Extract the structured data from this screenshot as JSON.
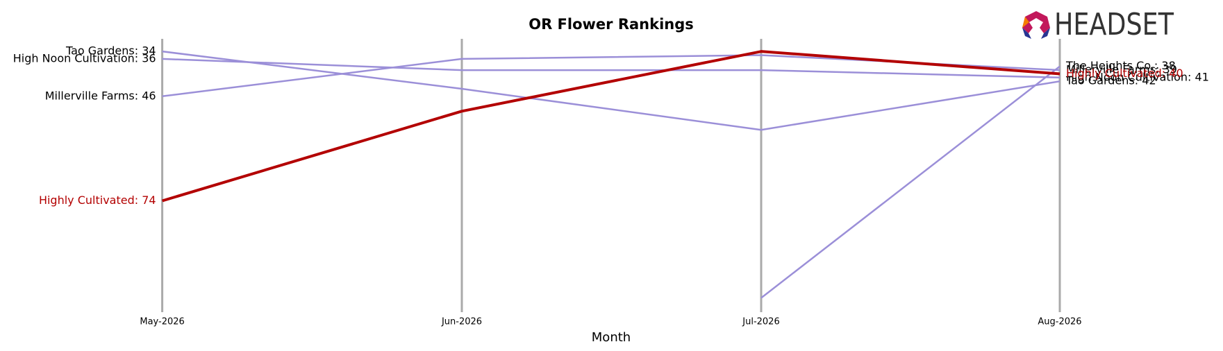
{
  "chart_data": {
    "type": "bump",
    "title": "OR Flower Rankings",
    "x_label": "Month",
    "logo": "HEADSET",
    "categories": [
      "May-2026",
      "Jun-2026",
      "Jul-2026",
      "Aug-2026"
    ],
    "ylim": [
      104,
      31
    ],
    "y_inverted": true,
    "series": [
      {
        "name": "Tao Gardens",
        "color": "#9b8fd8",
        "label_color": "#000000",
        "highlight": false,
        "values": [
          34,
          44,
          55,
          42
        ],
        "value_labels": [
          "Tao Gardens: 34",
          null,
          null,
          "Tao Gardens: 42"
        ]
      },
      {
        "name": "High Noon Cultivation",
        "color": "#9b8fd8",
        "label_color": "#000000",
        "highlight": false,
        "values": [
          36,
          39,
          39,
          41
        ],
        "value_labels": [
          "High Noon Cultivation: 36",
          null,
          null,
          "High Noon Cultivation: 41"
        ]
      },
      {
        "name": "Millerville Farms",
        "color": "#9b8fd8",
        "label_color": "#000000",
        "highlight": false,
        "values": [
          46,
          36,
          35,
          39
        ],
        "value_labels": [
          "Millerville Farms: 46",
          null,
          null,
          "Millerville Farms: 39"
        ]
      },
      {
        "name": "The Heights Co.",
        "color": "#9b8fd8",
        "label_color": "#000000",
        "highlight": false,
        "values": [
          null,
          null,
          100,
          38
        ],
        "value_labels": [
          null,
          null,
          null,
          "The Heights Co.: 38"
        ]
      },
      {
        "name": "Highly Cultivated",
        "color": "#b30000",
        "label_color": "#b30000",
        "highlight": true,
        "values": [
          74,
          50,
          34,
          40
        ],
        "value_labels": [
          "Highly Cultivated: 74",
          null,
          null,
          "Highly Cultivated: 40"
        ]
      }
    ]
  }
}
